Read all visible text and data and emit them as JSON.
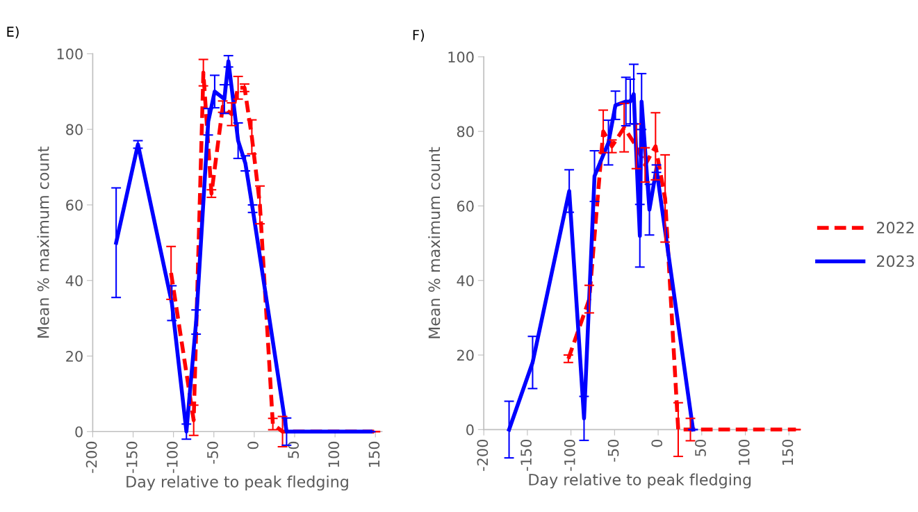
{
  "chart_data": [
    {
      "type": "line",
      "title": "E)",
      "xlabel": "Day relative to peak fledging",
      "ylabel": "Mean % maximum count",
      "xlim": [
        -200,
        158
      ],
      "xticks": [
        -200,
        -150,
        -100,
        -50,
        0,
        50,
        100,
        150
      ],
      "ylim": [
        0,
        100
      ],
      "yticks": [
        0,
        20,
        40,
        60,
        80,
        100
      ],
      "grid": false,
      "marker": "none",
      "legend": "right",
      "series": [
        {
          "name": "2022",
          "color": "#ff0000",
          "line_style": "dashed",
          "x": [
            -103,
            -75,
            -63,
            -53,
            -39,
            -28,
            -20,
            -12,
            -3,
            7,
            23,
            35,
            150
          ],
          "values": [
            42,
            3,
            95,
            63,
            86,
            84,
            91,
            91,
            78,
            60,
            2,
            0,
            0
          ],
          "errors": [
            7,
            4,
            3.5,
            1,
            1.5,
            3,
            3,
            1,
            4.5,
            5,
            1.5,
            4,
            0
          ]
        },
        {
          "name": "2023",
          "color": "#0000ff",
          "line_style": "solid",
          "x": [
            -171,
            -144,
            -102,
            -84,
            -72,
            -57,
            -49,
            -37,
            -32,
            -20,
            -11,
            -2,
            40,
            144
          ],
          "values": [
            50,
            76,
            34,
            0,
            29,
            82,
            90,
            88,
            98,
            77,
            71,
            59,
            0,
            0
          ],
          "errors": [
            14.5,
            1,
            4.6,
            2,
            3.2,
            3.5,
            4.3,
            3.8,
            1.5,
            4.7,
            2,
            1,
            3.6,
            0
          ]
        }
      ]
    },
    {
      "type": "line",
      "title": "F)",
      "xlabel": "Day relative to peak fledging",
      "ylabel": "Mean % maximum count",
      "xlim": [
        -200,
        158
      ],
      "xticks": [
        -200,
        -150,
        -100,
        -50,
        0,
        50,
        100,
        150
      ],
      "ylim": [
        0,
        100
      ],
      "yticks": [
        0,
        20,
        40,
        60,
        80,
        100
      ],
      "grid": false,
      "marker": "none",
      "series": [
        {
          "name": "2022",
          "color": "#ff0000",
          "line_style": "dashed",
          "x": [
            -103,
            -79,
            -63,
            -53,
            -39,
            -25,
            -15,
            -3,
            8,
            23,
            37,
            158
          ],
          "values": [
            19,
            35,
            80,
            76,
            81,
            76,
            71,
            76,
            62,
            0,
            0,
            0
          ],
          "errors": [
            1,
            3.7,
            5.7,
            1.7,
            6.5,
            6,
            4.6,
            9,
            11.7,
            7.2,
            3,
            0
          ]
        },
        {
          "name": "2023",
          "color": "#0000ff",
          "line_style": "solid",
          "x": [
            -171,
            -144,
            -102,
            -85,
            -73,
            -57,
            -49,
            -37,
            -32,
            -28,
            -21,
            -19,
            -10,
            -2,
            40
          ],
          "values": [
            0,
            18,
            64,
            3,
            68,
            77,
            87,
            88,
            88,
            90,
            52,
            88,
            59,
            70,
            0
          ],
          "errors": [
            7.6,
            7,
            5.7,
            5.9,
            6.8,
            6,
            3.8,
            6.5,
            6,
            8,
            8.4,
            7.5,
            6.8,
            1,
            0
          ]
        }
      ]
    }
  ]
}
